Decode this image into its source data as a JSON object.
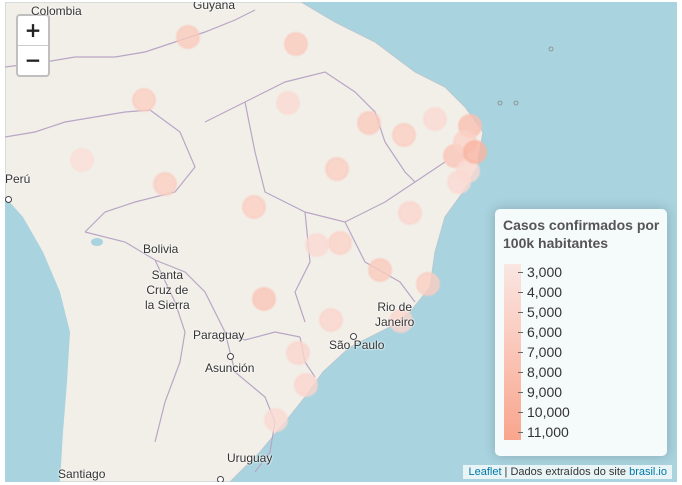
{
  "map": {
    "place_labels": {
      "colombia": "Colombia",
      "guyana": "Guyana",
      "peru": "Perú",
      "bolivia": "Bolivia",
      "santa_cruz": "Santa\nCruz de\nla Sierra",
      "paraguay": "Paraguay",
      "asuncion": "Asunción",
      "rio": "Rio de\nJaneiro",
      "sao_paulo": "São Paulo",
      "uruguay": "Uruguay",
      "santiago": "Santiago"
    },
    "colors": {
      "water": "#a9d3df",
      "land": "#f2efe9",
      "marker_low": "#fae6e2",
      "marker_high": "#f9a58d"
    }
  },
  "zoom": {
    "in_label": "+",
    "out_label": "−"
  },
  "legend": {
    "title": "Casos confirmados por 100k habitantes",
    "ticks": [
      "3,000",
      "4,000",
      "5,000",
      "6,000",
      "7,000",
      "8,000",
      "9,000",
      "10,000",
      "11,000"
    ]
  },
  "chart_data": {
    "type": "bubble-map",
    "title": "Casos confirmados por 100k habitantes",
    "color_scale": {
      "min": 3000,
      "max": 11000,
      "ticks": [
        3000,
        4000,
        5000,
        6000,
        7000,
        8000,
        9000,
        10000,
        11000
      ]
    },
    "markers": [
      {
        "value": 6500
      },
      {
        "value": 6500
      },
      {
        "value": 6000
      },
      {
        "value": 4500
      },
      {
        "value": 6500
      },
      {
        "value": 6000
      },
      {
        "value": 4500
      },
      {
        "value": 7500
      },
      {
        "value": 4000
      },
      {
        "value": 6000
      },
      {
        "value": 6000
      },
      {
        "value": 6000
      },
      {
        "value": 7000
      },
      {
        "value": 4500
      },
      {
        "value": 4500
      },
      {
        "value": 5000
      },
      {
        "value": 5500
      },
      {
        "value": 4500
      },
      {
        "value": 6500
      },
      {
        "value": 6000
      },
      {
        "value": 7000
      },
      {
        "value": 5000
      },
      {
        "value": 5000
      },
      {
        "value": 5000
      },
      {
        "value": 5000
      },
      {
        "value": 4500
      },
      {
        "value": 5500
      },
      {
        "value": 9000
      }
    ]
  },
  "attribution": {
    "leaflet": "Leaflet",
    "text": " | Dados extraídos do site ",
    "source": "brasil.io"
  }
}
